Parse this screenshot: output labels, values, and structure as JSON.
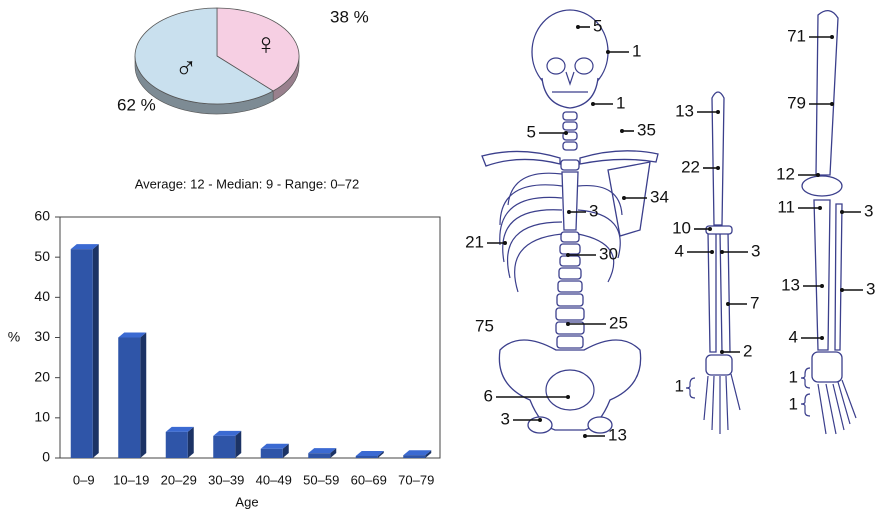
{
  "chart_data": [
    {
      "type": "pie",
      "categories": [
        "♂",
        "♀"
      ],
      "values": [
        62,
        38
      ],
      "value_labels": [
        "62 %",
        "38 %"
      ],
      "colors": [
        "#c9e0ee",
        "#f6cfe3"
      ]
    },
    {
      "type": "bar",
      "title": "Average: 12 - Median: 9 - Range: 0–72",
      "categories": [
        "0–9",
        "10–19",
        "20–29",
        "30–39",
        "40–49",
        "50–59",
        "60–69",
        "70–79"
      ],
      "values": [
        52,
        30,
        6.5,
        5.5,
        2.3,
        1.2,
        0.5,
        0.7
      ],
      "color": "#2f55a8",
      "ylim": [
        0,
        60
      ],
      "yticks": [
        0,
        10,
        20,
        30,
        40,
        50,
        60
      ],
      "ylabel": "%",
      "xlabel": "Age",
      "grid": false
    }
  ],
  "skeleton": {
    "labels": [
      5,
      1,
      1,
      5,
      35,
      34,
      3,
      21,
      30,
      25,
      75,
      6,
      3,
      13,
      13,
      22,
      10,
      4,
      3,
      7,
      2,
      1,
      71,
      79,
      12,
      11,
      3,
      13,
      3,
      4,
      1,
      1
    ]
  }
}
